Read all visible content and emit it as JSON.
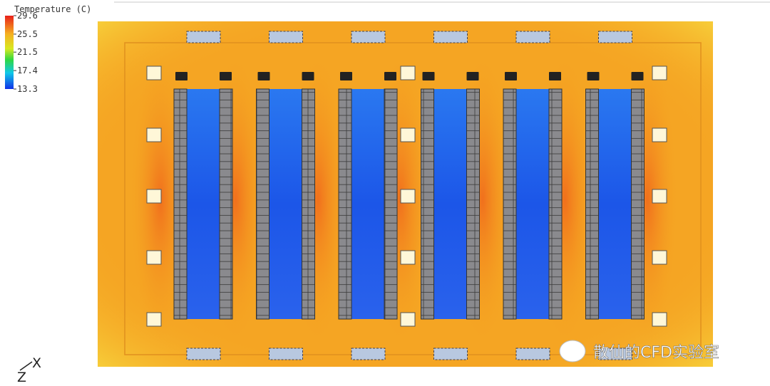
{
  "legend": {
    "title": "Temperature (C)",
    "ticks": [
      29.6,
      25.5,
      21.5,
      17.4,
      13.3
    ]
  },
  "axes": {
    "x": "X",
    "z": "Z"
  },
  "watermark": "散仙的CFD实验室"
}
